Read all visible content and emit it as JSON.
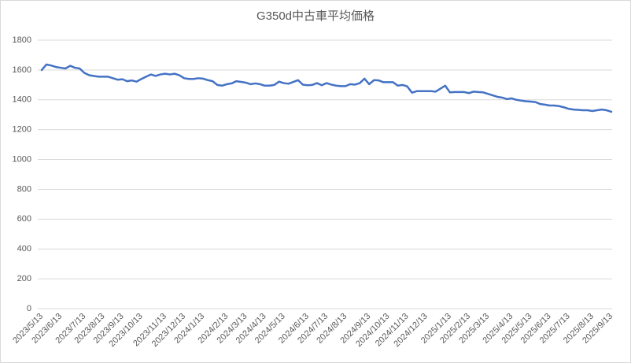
{
  "chart_data": {
    "type": "line",
    "title": "G350d中古車平均価格",
    "categories": [
      "2023/5/13",
      null,
      null,
      null,
      "2023/6/13",
      null,
      null,
      null,
      null,
      "2023/7/13",
      null,
      null,
      null,
      "2023/8/13",
      null,
      null,
      null,
      "2023/9/13",
      null,
      null,
      null,
      "2023/10/13",
      null,
      null,
      null,
      null,
      "2023/11/13",
      null,
      null,
      null,
      "2023/12/13",
      null,
      null,
      null,
      "2024/1/13",
      null,
      null,
      null,
      null,
      "2024/2/13",
      null,
      null,
      null,
      "2024/3/13",
      null,
      null,
      null,
      "2024/4/13",
      null,
      null,
      null,
      "2024/5/13",
      null,
      null,
      null,
      null,
      "2024/6/13",
      null,
      null,
      null,
      "2024/7/13",
      null,
      null,
      null,
      "2024/8/13",
      null,
      null,
      null,
      null,
      "2024/9/13",
      null,
      null,
      null,
      "2024/10/13",
      null,
      null,
      null,
      "2024/11/13",
      null,
      null,
      null,
      "2024/12/13",
      null,
      null,
      null,
      null,
      "2025/1/13",
      null,
      null,
      null,
      "2025/2/13",
      null,
      null,
      null,
      "2025/3/13",
      null,
      null,
      null,
      null,
      "2025/4/13",
      null,
      null,
      null,
      "2025/5/13",
      null,
      null,
      null,
      "2025/6/13",
      null,
      null,
      null,
      "2025/7/13",
      null,
      null,
      null,
      null,
      "2025/8/13",
      null,
      null,
      null,
      "2025/9/13"
    ],
    "values": [
      1600,
      1637,
      1630,
      1620,
      1615,
      1610,
      1628,
      1615,
      1610,
      1580,
      1565,
      1560,
      1555,
      1555,
      1555,
      1545,
      1535,
      1538,
      1525,
      1530,
      1522,
      1540,
      1555,
      1570,
      1560,
      1570,
      1575,
      1570,
      1575,
      1565,
      1545,
      1540,
      1540,
      1545,
      1542,
      1532,
      1525,
      1500,
      1495,
      1505,
      1510,
      1525,
      1520,
      1515,
      1505,
      1510,
      1505,
      1495,
      1495,
      1500,
      1522,
      1512,
      1508,
      1520,
      1532,
      1502,
      1498,
      1500,
      1512,
      1498,
      1512,
      1502,
      1495,
      1492,
      1492,
      1505,
      1502,
      1512,
      1542,
      1505,
      1532,
      1530,
      1518,
      1518,
      1518,
      1495,
      1500,
      1490,
      1448,
      1458,
      1458,
      1458,
      1458,
      1455,
      1475,
      1495,
      1450,
      1452,
      1452,
      1452,
      1445,
      1455,
      1452,
      1450,
      1440,
      1430,
      1420,
      1415,
      1405,
      1410,
      1400,
      1395,
      1390,
      1388,
      1385,
      1372,
      1368,
      1362,
      1362,
      1358,
      1350,
      1340,
      1335,
      1333,
      1330,
      1330,
      1325,
      1330,
      1335,
      1330,
      1320
    ],
    "color": "#4472c4",
    "ylim": [
      0,
      1800
    ],
    "yticks": [
      0,
      200,
      400,
      600,
      800,
      1000,
      1200,
      1400,
      1600,
      1800
    ],
    "grid": true
  }
}
